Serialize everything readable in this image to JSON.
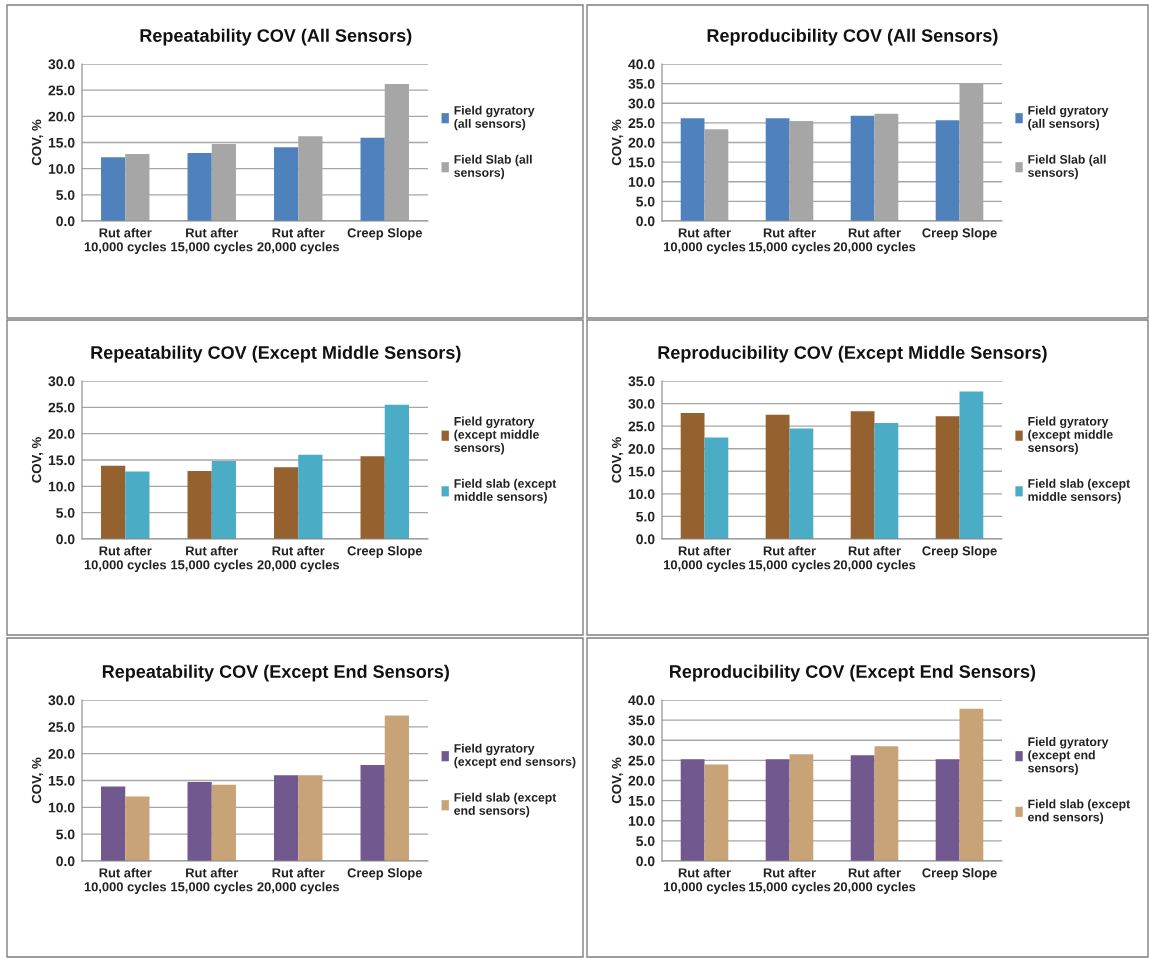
{
  "chart_data": [
    {
      "type": "bar",
      "title": "Repeatability COV (All Sensors)",
      "ylabel": "COV, %",
      "categories": [
        "Rut after 10,000 cycles",
        "Rut after 15,000 cycles",
        "Rut after 20,000 cycles",
        "Creep Slope"
      ],
      "series": [
        {
          "name": "Field gyratory (all sensors)",
          "color": "#4f81bd",
          "values": [
            12.2,
            13.0,
            14.1,
            15.9
          ]
        },
        {
          "name": "Field Slab (all sensors)",
          "color": "#a6a6a6",
          "values": [
            12.8,
            14.7,
            16.2,
            26.2
          ]
        }
      ],
      "ylim": [
        0,
        30
      ],
      "yticks": [
        {
          "value": 0,
          "label": "0.0"
        },
        {
          "value": 5,
          "label": "5.0"
        },
        {
          "value": 10,
          "label": "10.0"
        },
        {
          "value": 15,
          "label": "15.0"
        },
        {
          "value": 20,
          "label": "20.0"
        },
        {
          "value": 25,
          "label": "25.0"
        },
        {
          "value": 30,
          "label": "30.0"
        }
      ],
      "grid": "y",
      "legend": "right"
    },
    {
      "type": "bar",
      "title": "Reproducibility COV (All Sensors)",
      "ylabel": "COV, %",
      "categories": [
        "Rut after 10,000 cycles",
        "Rut after 15,000 cycles",
        "Rut after 20,000 cycles",
        "Creep Slope"
      ],
      "series": [
        {
          "name": "Field gyratory (all sensors)",
          "color": "#4f81bd",
          "values": [
            26.2,
            26.2,
            26.8,
            25.7
          ]
        },
        {
          "name": "Field Slab (all sensors)",
          "color": "#a6a6a6",
          "values": [
            23.4,
            25.5,
            27.3,
            35.1
          ]
        }
      ],
      "ylim": [
        0,
        40
      ],
      "yticks": [
        {
          "value": 0,
          "label": "0.0"
        },
        {
          "value": 5,
          "label": "5.0"
        },
        {
          "value": 10,
          "label": "10.0"
        },
        {
          "value": 15,
          "label": "15.0"
        },
        {
          "value": 20,
          "label": "20.0"
        },
        {
          "value": 25,
          "label": "25.0"
        },
        {
          "value": 30,
          "label": "30.0"
        },
        {
          "value": 35,
          "label": "35.0"
        },
        {
          "value": 40,
          "label": "40.0"
        }
      ],
      "grid": "y",
      "legend": "right"
    },
    {
      "type": "bar",
      "title": "Repeatability COV (Except Middle Sensors)",
      "ylabel": "COV, %",
      "categories": [
        "Rut after 10,000 cycles",
        "Rut after 15,000 cycles",
        "Rut after 20,000 cycles",
        "Creep Slope"
      ],
      "series": [
        {
          "name": "Field gyratory (except middle sensors)",
          "color": "#94612f",
          "values": [
            13.9,
            12.9,
            13.6,
            15.7
          ]
        },
        {
          "name": "Field slab (except middle sensors)",
          "color": "#4bacc6",
          "values": [
            12.8,
            14.8,
            16.0,
            25.5
          ]
        }
      ],
      "ylim": [
        0,
        30
      ],
      "yticks": [
        {
          "value": 0,
          "label": "0.0"
        },
        {
          "value": 5,
          "label": "5.0"
        },
        {
          "value": 10,
          "label": "10.0"
        },
        {
          "value": 15,
          "label": "15.0"
        },
        {
          "value": 20,
          "label": "20.0"
        },
        {
          "value": 25,
          "label": "25.0"
        },
        {
          "value": 30,
          "label": "30.0"
        }
      ],
      "grid": "y",
      "legend": "right"
    },
    {
      "type": "bar",
      "title": "Reproducibility COV (Except Middle Sensors)",
      "ylabel": "COV, %",
      "categories": [
        "Rut after 10,000 cycles",
        "Rut after 15,000 cycles",
        "Rut after 20,000 cycles",
        "Creep Slope"
      ],
      "series": [
        {
          "name": "Field gyratory (except middle sensors)",
          "color": "#94612f",
          "values": [
            27.9,
            27.5,
            28.3,
            27.2
          ]
        },
        {
          "name": "Field slab (except middle sensors)",
          "color": "#4bacc6",
          "values": [
            22.5,
            24.5,
            25.7,
            32.7
          ]
        }
      ],
      "ylim": [
        0,
        35
      ],
      "yticks": [
        {
          "value": 0,
          "label": "0.0"
        },
        {
          "value": 5,
          "label": "5.0"
        },
        {
          "value": 10,
          "label": "10.0"
        },
        {
          "value": 15,
          "label": "15.0"
        },
        {
          "value": 20,
          "label": "20.0"
        },
        {
          "value": 25,
          "label": "25.0"
        },
        {
          "value": 30,
          "label": "30.0"
        },
        {
          "value": 35,
          "label": "35.0"
        }
      ],
      "grid": "y",
      "legend": "right"
    },
    {
      "type": "bar",
      "title": "Repeatability COV (Except End Sensors)",
      "ylabel": "COV, %",
      "categories": [
        "Rut after 10,000 cycles",
        "Rut after 15,000 cycles",
        "Rut after 20,000 cycles",
        "Creep Slope"
      ],
      "series": [
        {
          "name": "Field gyratory (except end sensors)",
          "color": "#71588f",
          "values": [
            13.9,
            14.7,
            16.0,
            17.9
          ]
        },
        {
          "name": "Field slab (except end sensors)",
          "color": "#c7a377",
          "values": [
            12.0,
            14.2,
            16.0,
            27.1
          ]
        }
      ],
      "ylim": [
        0,
        30
      ],
      "yticks": [
        {
          "value": 0,
          "label": "0.0"
        },
        {
          "value": 5,
          "label": "5.0"
        },
        {
          "value": 10,
          "label": "10.0"
        },
        {
          "value": 15,
          "label": "15.0"
        },
        {
          "value": 20,
          "label": "20.0"
        },
        {
          "value": 25,
          "label": "25.0"
        },
        {
          "value": 30,
          "label": "30.0"
        }
      ],
      "grid": "y",
      "legend": "right"
    },
    {
      "type": "bar",
      "title": "Reproducibility COV (Except End Sensors)",
      "ylabel": "COV, %",
      "categories": [
        "Rut after 10,000 cycles",
        "Rut after 15,000 cycles",
        "Rut after 20,000 cycles",
        "Creep Slope"
      ],
      "series": [
        {
          "name": "Field gyratory (except end sensors)",
          "color": "#71588f",
          "values": [
            25.3,
            25.3,
            26.3,
            25.3
          ]
        },
        {
          "name": "Field slab (except end sensors)",
          "color": "#c7a377",
          "values": [
            24.0,
            26.5,
            28.5,
            37.8
          ]
        }
      ],
      "ylim": [
        0,
        40
      ],
      "yticks": [
        {
          "value": 0,
          "label": "0.0"
        },
        {
          "value": 5,
          "label": "5.0"
        },
        {
          "value": 10,
          "label": "10.0"
        },
        {
          "value": 15,
          "label": "15.0"
        },
        {
          "value": 20,
          "label": "20.0"
        },
        {
          "value": 25,
          "label": "25.0"
        },
        {
          "value": 30,
          "label": "30.0"
        },
        {
          "value": 35,
          "label": "35.0"
        },
        {
          "value": 40,
          "label": "40.0"
        }
      ],
      "grid": "y",
      "legend": "right"
    }
  ]
}
